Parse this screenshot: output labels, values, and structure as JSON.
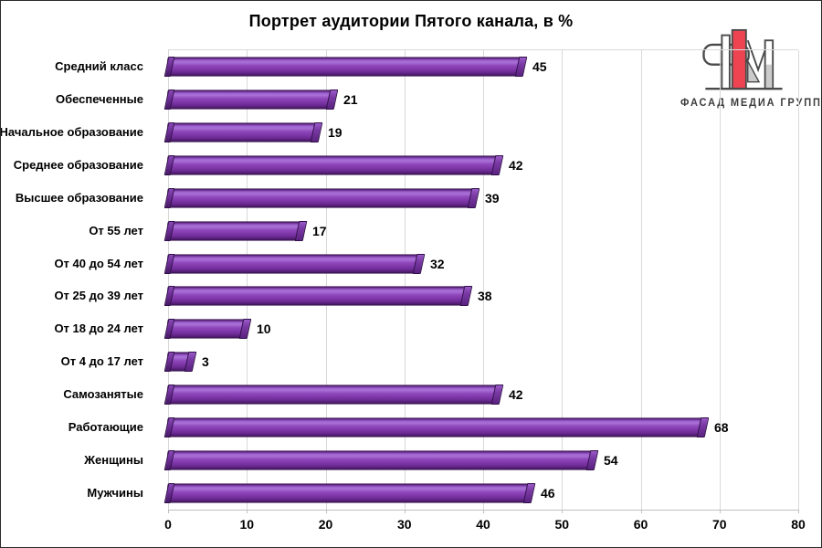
{
  "chart_data": {
    "type": "bar",
    "orientation": "horizontal",
    "title": "Портрет аудитории Пятого канала, в %",
    "categories": [
      "Средний класс",
      "Обеспеченные",
      "Начальное образование",
      "Среднее образование",
      "Высшее образование",
      "От 55 лет",
      "От 40 до 54 лет",
      "От 25 до 39 лет",
      "От 18 до 24 лет",
      "От 4 до 17 лет",
      "Самозанятые",
      "Работающие",
      "Женщины",
      "Мужчины"
    ],
    "values": [
      45,
      21,
      19,
      42,
      39,
      17,
      32,
      38,
      10,
      3,
      42,
      68,
      54,
      46
    ],
    "xlabel": "",
    "ylabel": "",
    "xlim": [
      0,
      80
    ],
    "xticks": [
      0,
      10,
      20,
      30,
      40,
      50,
      60,
      70,
      80
    ],
    "grid": "vertical-light-gray",
    "data_labels": "outside-end",
    "legend": "none",
    "bar_color": "#8a3fb3",
    "bar_highlight": "#aa70d7",
    "bar_shadow": "#541e75",
    "grid_color": "#d9d9d9",
    "axis_color": "#bfbfbf"
  },
  "logo": {
    "text": "ФАСАД МЕДИА ГРУПП",
    "mark_red": "#ee4452",
    "mark_gray": "#cbcbcb",
    "mark_outline": "#4a4a4a"
  }
}
